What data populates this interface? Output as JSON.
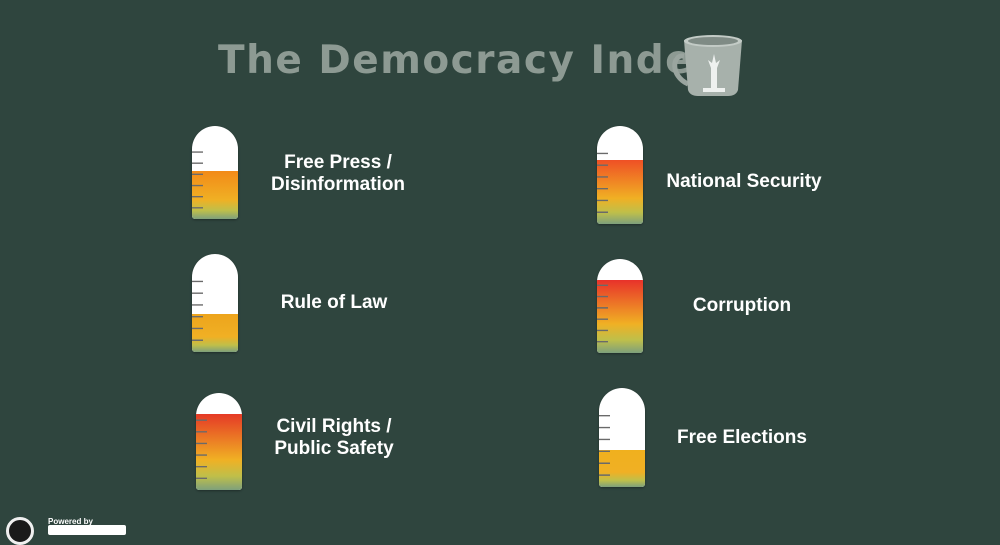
{
  "title": "The Democracy Index",
  "footer": {
    "powered_by": "Powered by"
  },
  "gauges": [
    {
      "label_lines": [
        "Free Press /",
        "Disinformation"
      ],
      "level": 0.52,
      "top_color": "#f28a18"
    },
    {
      "label_lines": [
        "Rule of Law"
      ],
      "level": 0.39,
      "top_color": "#eda41c"
    },
    {
      "label_lines": [
        "Civil Rights /",
        "Public Safety"
      ],
      "level": 0.78,
      "top_color": "#e53a26"
    },
    {
      "label_lines": [
        "National Security"
      ],
      "level": 0.65,
      "top_color": "#ef5025"
    },
    {
      "label_lines": [
        "Corruption"
      ],
      "level": 0.78,
      "top_color": "#e8322a"
    },
    {
      "label_lines": [
        "Free Elections"
      ],
      "level": 0.37,
      "top_color": "#f0b01e"
    }
  ]
}
